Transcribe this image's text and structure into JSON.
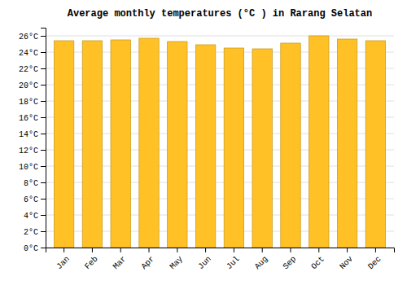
{
  "chart_data": {
    "type": "bar",
    "title": "Average monthly temperatures (°C ) in Rarang Selatan",
    "categories": [
      "Jan",
      "Feb",
      "Mar",
      "Apr",
      "May",
      "Jun",
      "Jul",
      "Aug",
      "Sep",
      "Oct",
      "Nov",
      "Dec"
    ],
    "values": [
      25.4,
      25.4,
      25.5,
      25.7,
      25.3,
      24.9,
      24.5,
      24.4,
      25.1,
      26.0,
      25.6,
      25.4
    ],
    "color": "#FFC125",
    "ylim": [
      0,
      27
    ],
    "yticks": [
      {
        "value": 0,
        "label": "0°C"
      },
      {
        "value": 2,
        "label": "2°C"
      },
      {
        "value": 4,
        "label": "4°C"
      },
      {
        "value": 6,
        "label": "6°C"
      },
      {
        "value": 8,
        "label": "8°C"
      },
      {
        "value": 10,
        "label": "10°C"
      },
      {
        "value": 12,
        "label": "12°C"
      },
      {
        "value": 14,
        "label": "14°C"
      },
      {
        "value": 16,
        "label": "16°C"
      },
      {
        "value": 18,
        "label": "18°C"
      },
      {
        "value": 20,
        "label": "20°C"
      },
      {
        "value": 22,
        "label": "22°C"
      },
      {
        "value": 24,
        "label": "24°C"
      },
      {
        "value": 26,
        "label": "26°C"
      }
    ],
    "grid": true
  }
}
